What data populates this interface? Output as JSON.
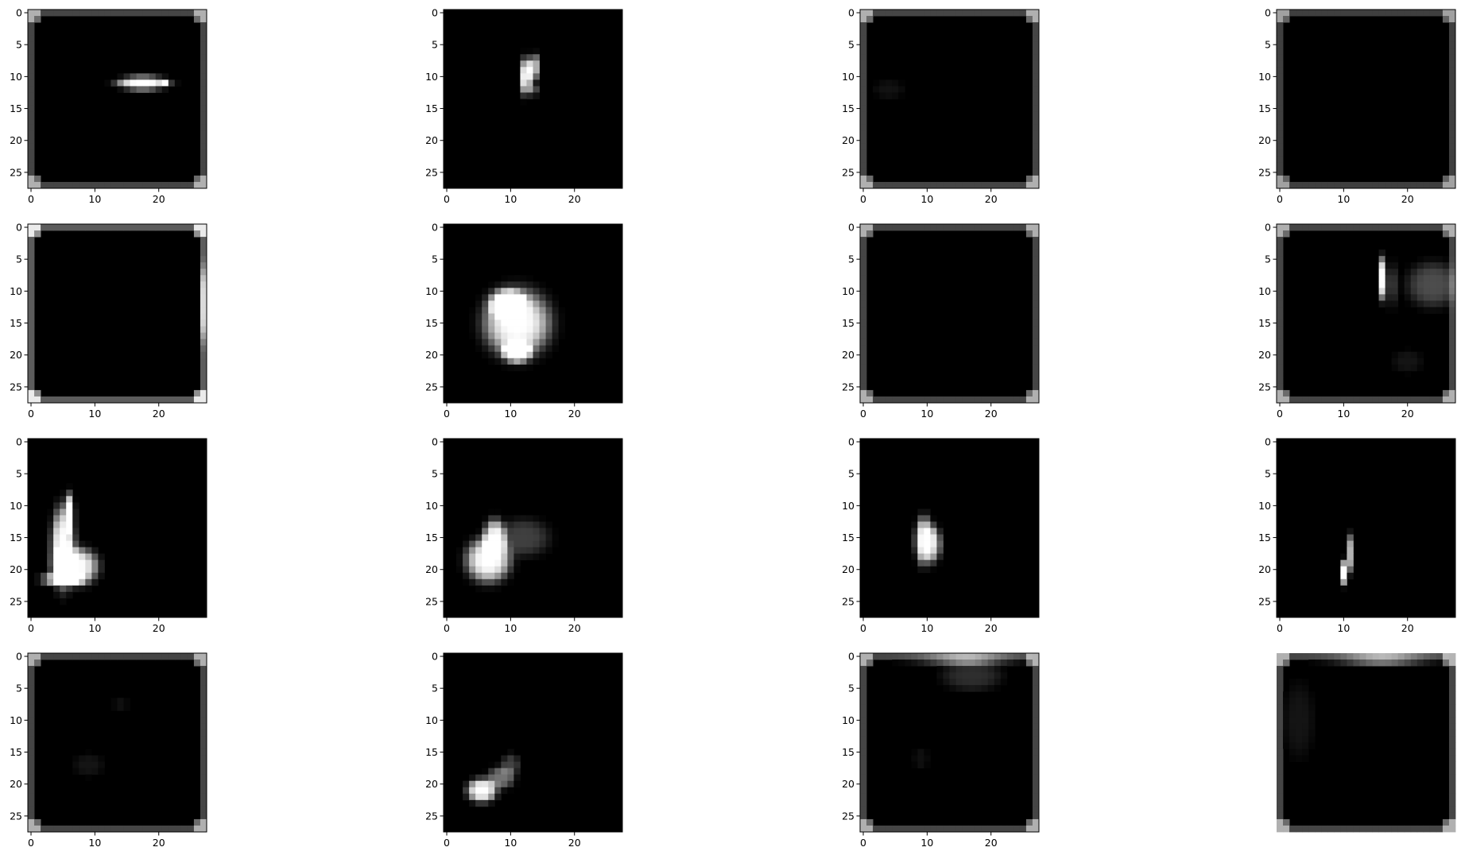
{
  "chart_data": {
    "type": "heatmap",
    "colormap": "gray",
    "grid": false,
    "layout": {
      "rows": 4,
      "cols": 4
    },
    "x_ticks": [
      0,
      10,
      20
    ],
    "y_ticks": [
      0,
      5,
      10,
      15,
      20,
      25
    ],
    "xlim": [
      -0.5,
      27.5
    ],
    "ylim": [
      27.5,
      -0.5
    ],
    "image_size": [
      28,
      28
    ],
    "panels": [
      {
        "index": 0,
        "axes": true,
        "frame": true,
        "blobs": [
          {
            "shape": "ellipse",
            "x": 17.5,
            "y": 11,
            "rx": 3.5,
            "ry": 0.9,
            "intensity": 1.0
          },
          {
            "shape": "ellipse",
            "x": 21,
            "y": 11,
            "rx": 0.6,
            "ry": 0.6,
            "intensity": 0.85
          }
        ]
      },
      {
        "index": 1,
        "axes": true,
        "frame": false,
        "blobs": [
          {
            "shape": "ellipse",
            "x": 12.4,
            "y": 10,
            "rx": 0.7,
            "ry": 2.6,
            "intensity": 1.0
          },
          {
            "shape": "ellipse",
            "x": 13.6,
            "y": 8.5,
            "rx": 0.7,
            "ry": 1.8,
            "intensity": 0.75
          },
          {
            "shape": "ellipse",
            "x": 13.5,
            "y": 12,
            "rx": 0.6,
            "ry": 1.0,
            "intensity": 0.35
          }
        ]
      },
      {
        "index": 2,
        "axes": true,
        "frame": true,
        "blobs": [
          {
            "shape": "ellipse",
            "x": 4,
            "y": 12,
            "rx": 2.0,
            "ry": 1.2,
            "intensity": 0.07
          }
        ]
      },
      {
        "index": 3,
        "axes": true,
        "frame": true,
        "frame_strength": 0.55,
        "blobs": []
      },
      {
        "index": 4,
        "axes": true,
        "frame": true,
        "frame_strength": 0.8,
        "blobs": [
          {
            "shape": "ellipse",
            "x": 27,
            "y": 12,
            "rx": 0.6,
            "ry": 5.0,
            "intensity": 0.5
          }
        ]
      },
      {
        "index": 5,
        "axes": true,
        "frame": false,
        "blobs": [
          {
            "shape": "ellipse",
            "x": 11,
            "y": 15,
            "rx": 4.5,
            "ry": 4.5,
            "intensity": 1.0
          },
          {
            "shape": "ellipse",
            "x": 9.5,
            "y": 12,
            "rx": 2.5,
            "ry": 2.0,
            "intensity": 0.9
          },
          {
            "shape": "ellipse",
            "x": 11,
            "y": 19.5,
            "rx": 2.0,
            "ry": 1.5,
            "intensity": 0.95
          }
        ]
      },
      {
        "index": 6,
        "axes": true,
        "frame": true,
        "blobs": []
      },
      {
        "index": 7,
        "axes": true,
        "frame": true,
        "blobs": [
          {
            "shape": "ellipse",
            "x": 16,
            "y": 8,
            "rx": 0.6,
            "ry": 2.8,
            "intensity": 1.0
          },
          {
            "shape": "ellipse",
            "x": 17.5,
            "y": 9,
            "rx": 0.5,
            "ry": 3.5,
            "intensity": 0.35
          },
          {
            "shape": "ellipse",
            "x": 24,
            "y": 9,
            "rx": 3.5,
            "ry": 3.0,
            "intensity": 0.3
          },
          {
            "shape": "ellipse",
            "x": 20,
            "y": 21,
            "rx": 2.0,
            "ry": 1.5,
            "intensity": 0.08
          }
        ]
      },
      {
        "index": 8,
        "axes": true,
        "frame": false,
        "blobs": [
          {
            "shape": "ellipse",
            "x": 5,
            "y": 16.5,
            "rx": 1.6,
            "ry": 5.5,
            "intensity": 1.0
          },
          {
            "shape": "ellipse",
            "x": 7,
            "y": 19.5,
            "rx": 3.0,
            "ry": 2.5,
            "intensity": 1.0
          },
          {
            "shape": "ellipse",
            "x": 6,
            "y": 11,
            "rx": 0.7,
            "ry": 2.5,
            "intensity": 0.95
          },
          {
            "shape": "ellipse",
            "x": 5,
            "y": 21.5,
            "rx": 3.0,
            "ry": 0.8,
            "intensity": 0.9
          }
        ]
      },
      {
        "index": 9,
        "axes": true,
        "frame": false,
        "blobs": [
          {
            "shape": "ellipse",
            "x": 6.5,
            "y": 18.5,
            "rx": 3.0,
            "ry": 3.0,
            "intensity": 1.0
          },
          {
            "shape": "ellipse",
            "x": 7.5,
            "y": 15,
            "rx": 1.5,
            "ry": 2.5,
            "intensity": 0.9
          },
          {
            "shape": "ellipse",
            "x": 12,
            "y": 15,
            "rx": 3.5,
            "ry": 2.5,
            "intensity": 0.25
          }
        ]
      },
      {
        "index": 10,
        "axes": true,
        "frame": false,
        "blobs": [
          {
            "shape": "ellipse",
            "x": 9.5,
            "y": 15.5,
            "rx": 1.2,
            "ry": 3.2,
            "intensity": 1.0
          },
          {
            "shape": "ellipse",
            "x": 11,
            "y": 16,
            "rx": 1.0,
            "ry": 2.5,
            "intensity": 0.7
          }
        ]
      },
      {
        "index": 11,
        "axes": true,
        "frame": false,
        "blobs": [
          {
            "shape": "ellipse",
            "x": 10,
            "y": 20.5,
            "rx": 0.6,
            "ry": 1.6,
            "intensity": 1.0
          },
          {
            "shape": "ellipse",
            "x": 11,
            "y": 17.5,
            "rx": 0.6,
            "ry": 2.5,
            "intensity": 0.7
          }
        ]
      },
      {
        "index": 12,
        "axes": true,
        "frame": true,
        "blobs": [
          {
            "shape": "ellipse",
            "x": 9,
            "y": 17,
            "rx": 2.0,
            "ry": 1.5,
            "intensity": 0.08
          },
          {
            "shape": "ellipse",
            "x": 14,
            "y": 7.5,
            "rx": 1.0,
            "ry": 1.0,
            "intensity": 0.06
          }
        ]
      },
      {
        "index": 13,
        "axes": true,
        "frame": false,
        "blobs": [
          {
            "shape": "ellipse",
            "x": 5.5,
            "y": 21,
            "rx": 2.0,
            "ry": 1.6,
            "intensity": 1.0
          },
          {
            "shape": "ellipse",
            "x": 8.5,
            "y": 19,
            "rx": 1.8,
            "ry": 1.5,
            "intensity": 0.45
          },
          {
            "shape": "ellipse",
            "x": 10,
            "y": 17,
            "rx": 1.2,
            "ry": 1.5,
            "intensity": 0.25
          }
        ]
      },
      {
        "index": 14,
        "axes": true,
        "frame": true,
        "top_glow": true,
        "blobs": [
          {
            "shape": "ellipse",
            "x": 17,
            "y": 3,
            "rx": 4.0,
            "ry": 2.0,
            "intensity": 0.18
          },
          {
            "shape": "ellipse",
            "x": 9,
            "y": 16,
            "rx": 1.0,
            "ry": 1.5,
            "intensity": 0.06
          }
        ]
      },
      {
        "index": 15,
        "axes": false,
        "frame": true,
        "top_glow": true,
        "blobs": [
          {
            "shape": "ellipse",
            "x": 3,
            "y": 10,
            "rx": 2.0,
            "ry": 5.0,
            "intensity": 0.08
          }
        ]
      }
    ]
  }
}
